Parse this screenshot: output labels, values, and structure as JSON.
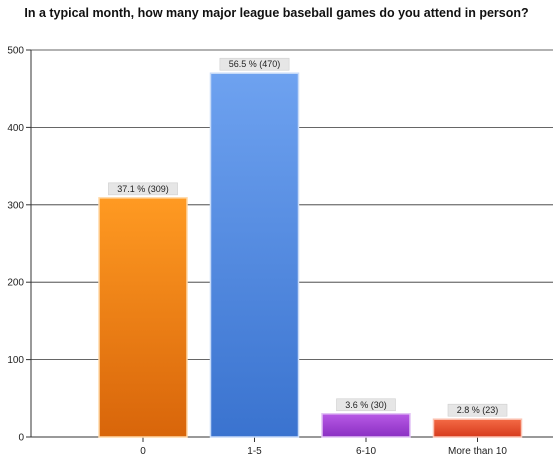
{
  "chart_data": {
    "type": "bar",
    "title": "In a typical month, how many major league baseball games do you attend in person?",
    "categories": [
      "0",
      "1-5",
      "6-10",
      "More than 10"
    ],
    "values": [
      309,
      470,
      30,
      23
    ],
    "data_labels": [
      "37.1 % (309)",
      "56.5 % (470)",
      "3.6 % (30)",
      "2.8 % (23)"
    ],
    "ylim": [
      0,
      500
    ],
    "yticks": [
      0,
      100,
      200,
      300,
      400,
      500
    ],
    "grid": true,
    "legend": "none",
    "xlabel": "",
    "ylabel": "",
    "colors": [
      {
        "top": "#ff9a22",
        "bottom": "#d8650a",
        "edge": "#ffd9a8"
      },
      {
        "top": "#6ea2f0",
        "bottom": "#3a73cf",
        "edge": "#c8dbf8"
      },
      {
        "top": "#b85ae6",
        "bottom": "#8a2fc2",
        "edge": "#e2c2f5"
      },
      {
        "top": "#f46a45",
        "bottom": "#d63a1c",
        "edge": "#fbc3b3"
      }
    ]
  }
}
